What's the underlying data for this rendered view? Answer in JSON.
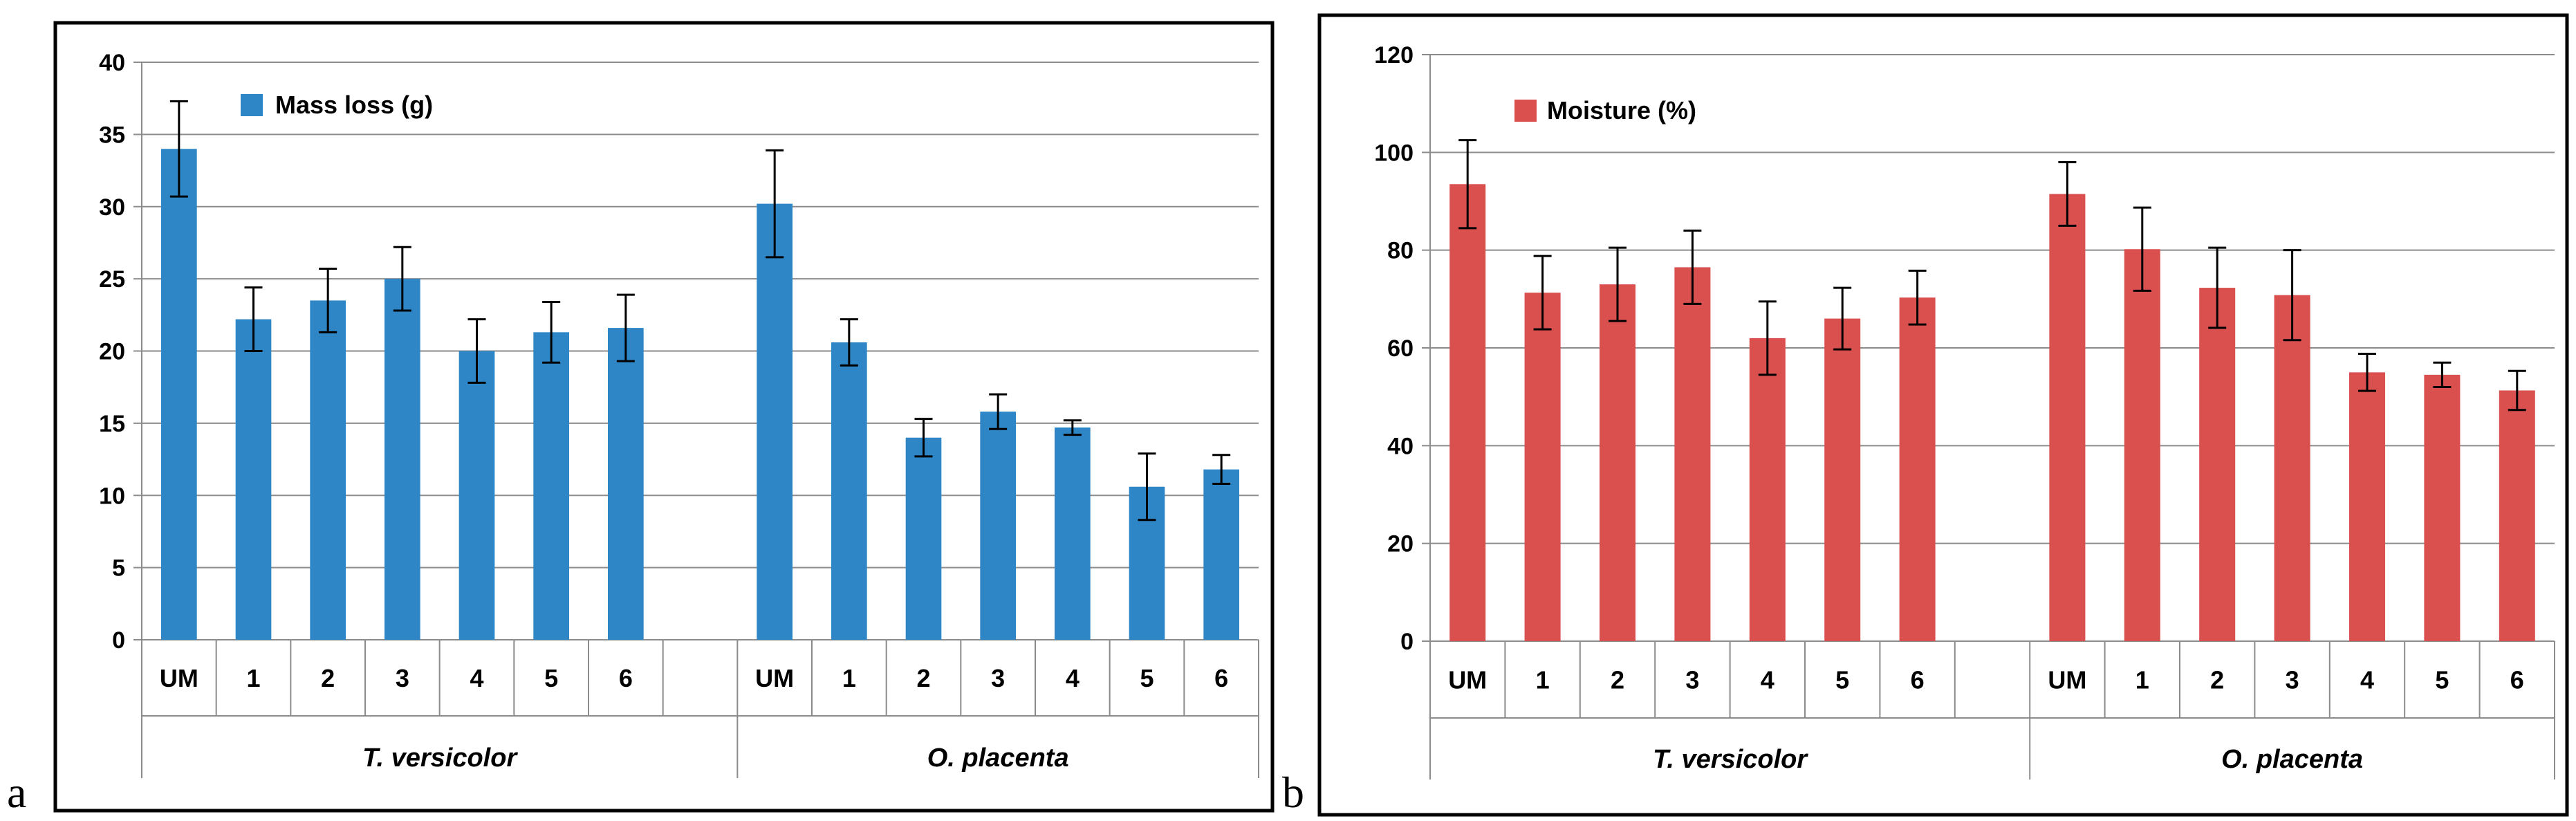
{
  "chart_data": [
    {
      "panel_label": "a",
      "type": "bar",
      "title": "",
      "legend": "Mass loss (g)",
      "legend_position": "top-left",
      "ylim": [
        0,
        40
      ],
      "yticks": [
        "0",
        "5",
        "10",
        "15",
        "20",
        "25",
        "30",
        "35",
        "40"
      ],
      "color": "#2e86c6",
      "groups": [
        {
          "label": "T. versicolor",
          "categories": [
            "UM",
            "1",
            "2",
            "3",
            "4",
            "5",
            "6"
          ],
          "values": [
            34.0,
            22.2,
            23.5,
            25.0,
            20.0,
            21.3,
            21.6
          ],
          "errors": [
            3.3,
            2.2,
            2.2,
            2.2,
            2.2,
            2.1,
            2.3
          ]
        },
        {
          "label": "O. placenta",
          "categories": [
            "UM",
            "1",
            "2",
            "3",
            "4",
            "5",
            "6"
          ],
          "values": [
            30.2,
            20.6,
            14.0,
            15.8,
            14.7,
            10.6,
            11.8
          ],
          "errors": [
            3.7,
            1.6,
            1.3,
            1.2,
            0.5,
            2.3,
            1.0
          ]
        }
      ]
    },
    {
      "panel_label": "b",
      "type": "bar",
      "title": "",
      "legend": "Moisture (%)",
      "legend_position": "top-left",
      "ylim": [
        0,
        120
      ],
      "yticks": [
        "0",
        "20",
        "40",
        "60",
        "80",
        "100",
        "120"
      ],
      "color": "#d9504f",
      "groups": [
        {
          "label": "T. versicolor",
          "categories": [
            "UM",
            "1",
            "2",
            "3",
            "4",
            "5",
            "6"
          ],
          "values": [
            93.5,
            71.3,
            73.0,
            76.5,
            62.0,
            66.0,
            70.3
          ],
          "errors": [
            9.0,
            7.5,
            7.5,
            7.5,
            7.5,
            6.3,
            5.5
          ]
        },
        {
          "label": "O. placenta",
          "categories": [
            "UM",
            "1",
            "2",
            "3",
            "4",
            "5",
            "6"
          ],
          "values": [
            91.5,
            80.2,
            72.3,
            70.8,
            55.0,
            54.5,
            51.3
          ],
          "errors": [
            6.5,
            8.5,
            8.2,
            9.2,
            3.8,
            2.5,
            4.0
          ]
        }
      ]
    }
  ]
}
